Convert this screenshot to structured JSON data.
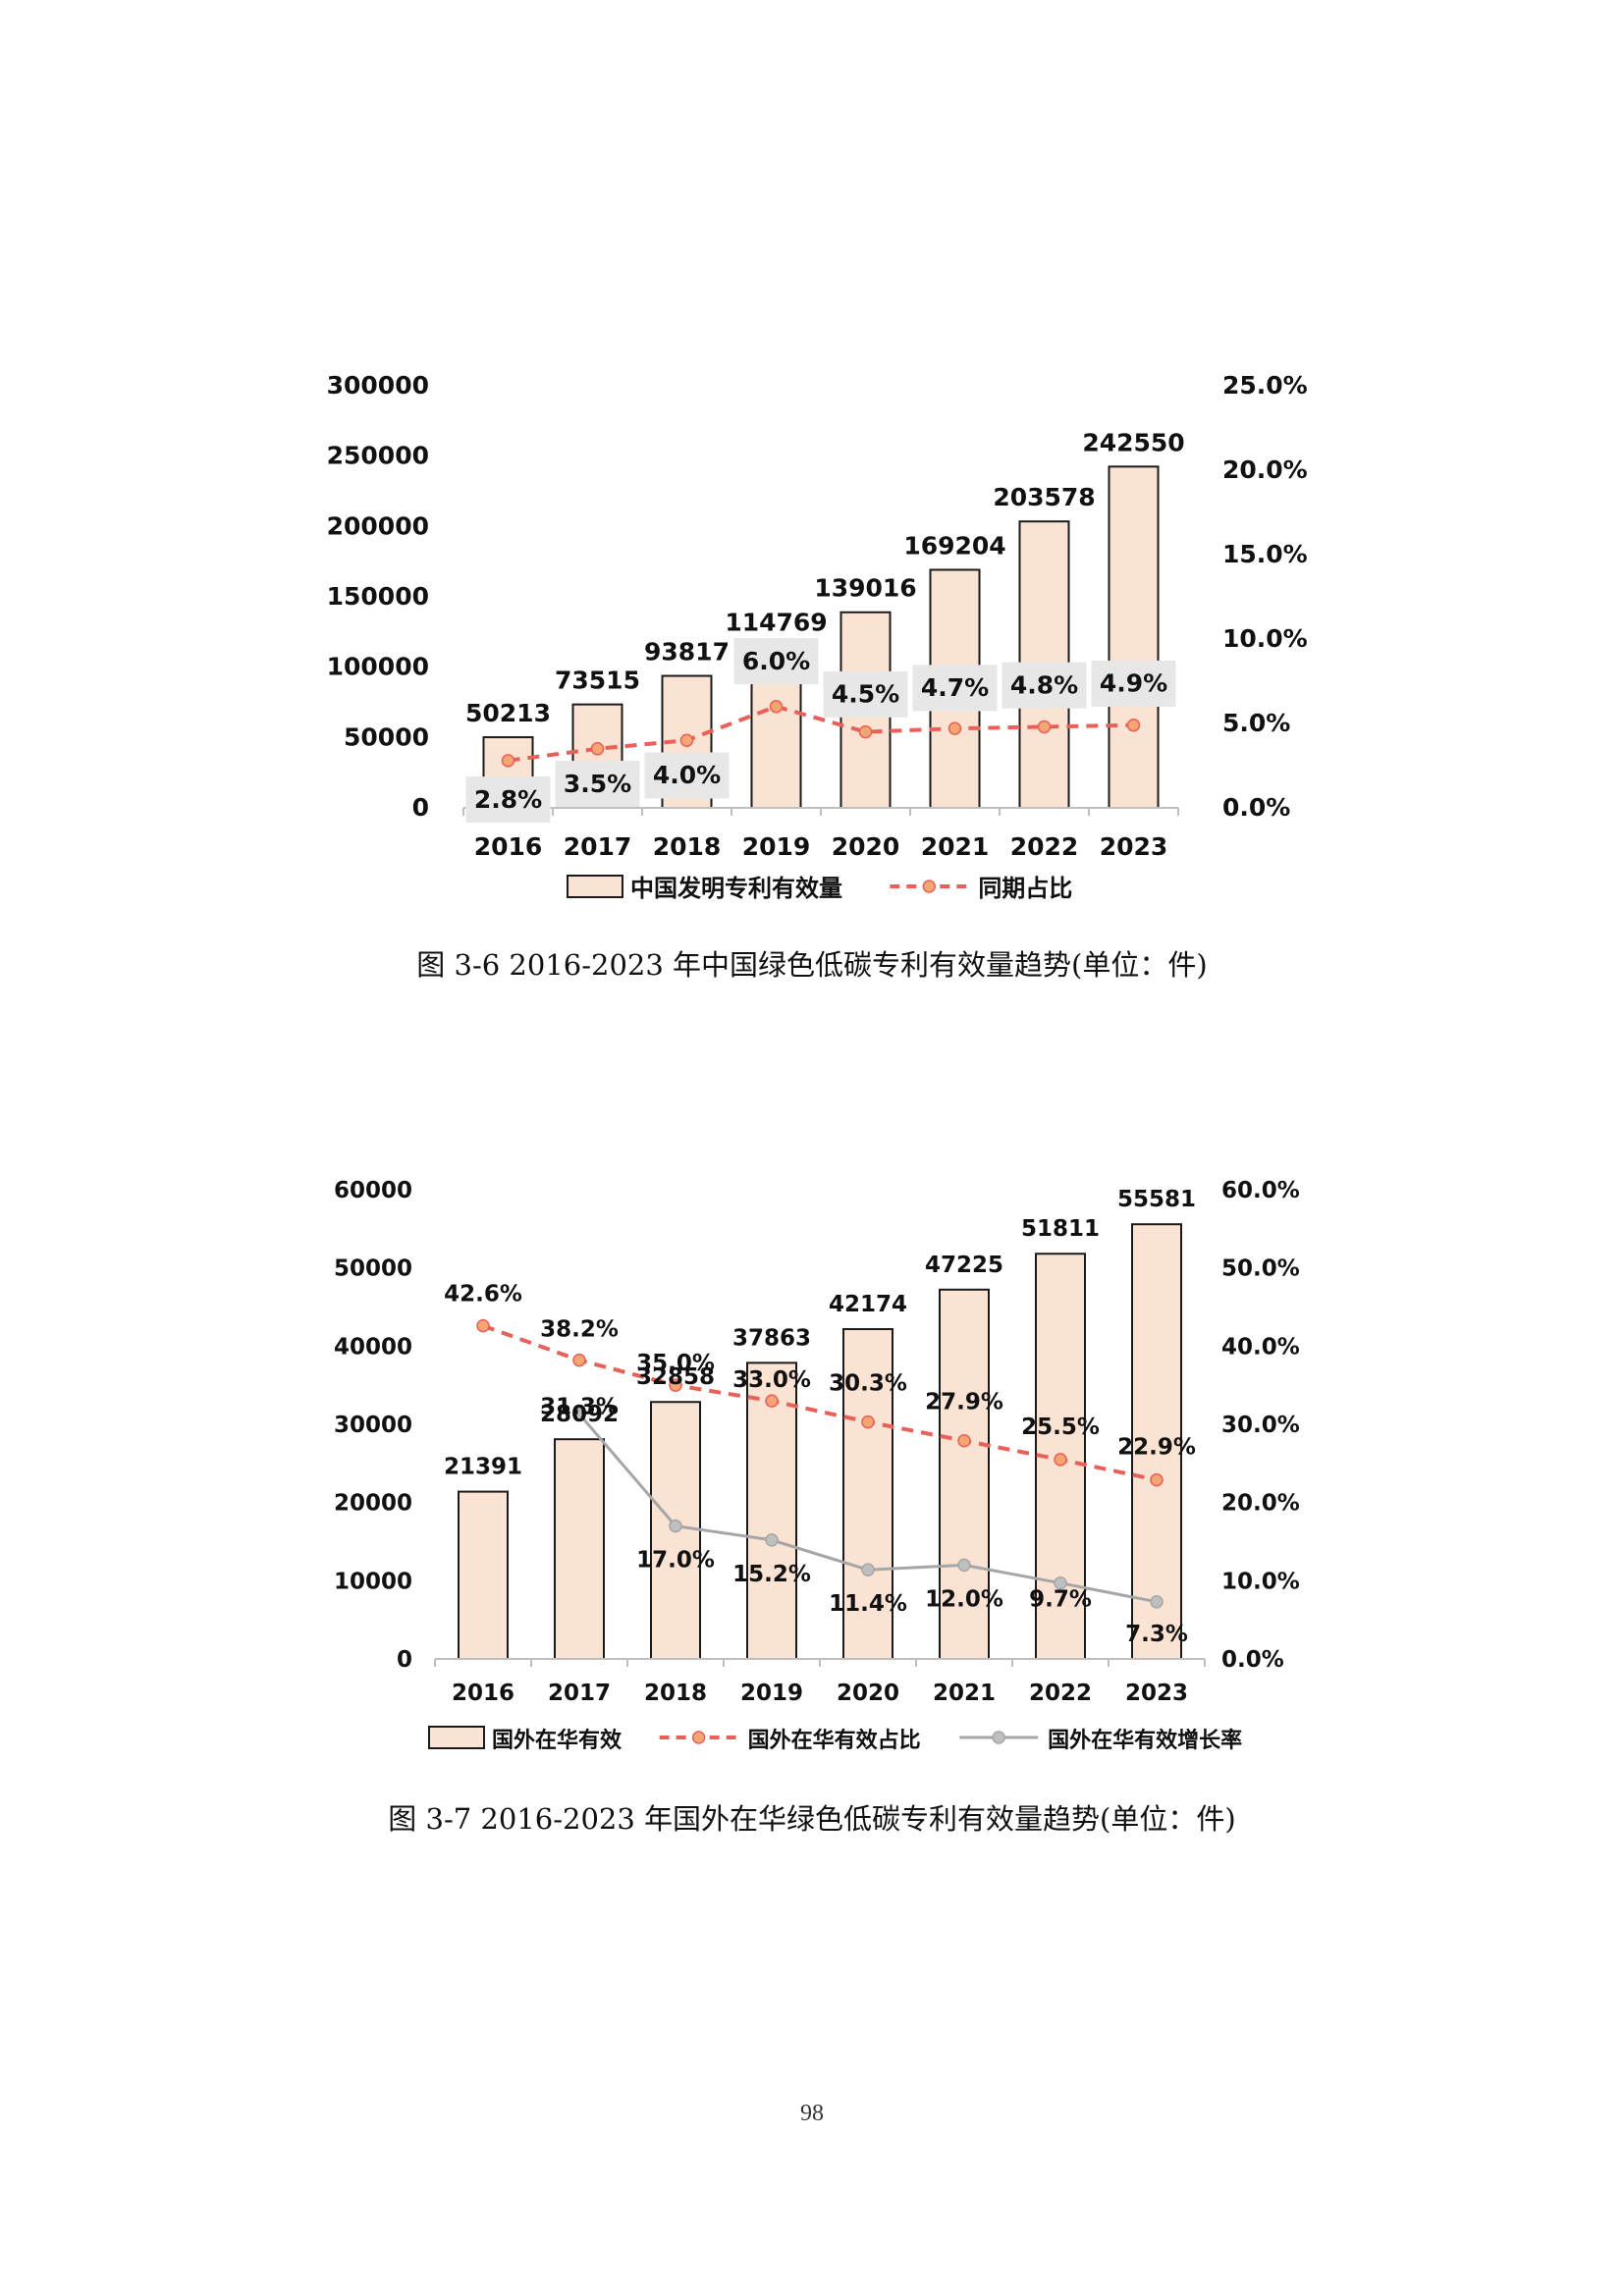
{
  "chart_data": [
    {
      "type": "bar",
      "title": "图 3-6 2016-2023 年中国绿色低碳专利有效量趋势(单位：件)",
      "categories": [
        "2016",
        "2017",
        "2018",
        "2019",
        "2020",
        "2021",
        "2022",
        "2023"
      ],
      "ylim": [
        0,
        300000
      ],
      "y_ticks": [
        "0",
        "50000",
        "100000",
        "150000",
        "200000",
        "250000",
        "300000"
      ],
      "y2lim": [
        0,
        25
      ],
      "y2_ticks": [
        "0.0%",
        "5.0%",
        "10.0%",
        "15.0%",
        "20.0%",
        "25.0%"
      ],
      "legend_position": "bottom",
      "series": [
        {
          "name": "中国发明专利有效量",
          "type": "bar",
          "axis": "left",
          "color": "#fbe3d4",
          "values": [
            50213,
            73515,
            93817,
            114769,
            139016,
            169204,
            203578,
            242550
          ],
          "labels": [
            "50213",
            "73515",
            "93817",
            "114769",
            "139016",
            "169204",
            "203578",
            "242550"
          ]
        },
        {
          "name": "同期占比",
          "type": "line",
          "axis": "right",
          "color": "#e8605a",
          "marker_color": "#f4a672",
          "dashed": true,
          "values": [
            2.8,
            3.5,
            4.0,
            6.0,
            4.5,
            4.7,
            4.8,
            4.9
          ],
          "labels": [
            "2.8%",
            "3.5%",
            "4.0%",
            "6.0%",
            "4.5%",
            "4.7%",
            "4.8%",
            "4.9%"
          ]
        }
      ]
    },
    {
      "type": "bar",
      "title": "图 3-7 2016-2023 年国外在华绿色低碳专利有效量趋势(单位：件)",
      "categories": [
        "2016",
        "2017",
        "2018",
        "2019",
        "2020",
        "2021",
        "2022",
        "2023"
      ],
      "ylim": [
        0,
        60000
      ],
      "y_ticks": [
        "0",
        "10000",
        "20000",
        "30000",
        "40000",
        "50000",
        "60000"
      ],
      "y2lim": [
        0,
        60
      ],
      "y2_ticks": [
        "0.0%",
        "10.0%",
        "20.0%",
        "30.0%",
        "40.0%",
        "50.0%",
        "60.0%"
      ],
      "legend_position": "bottom",
      "series": [
        {
          "name": "国外在华有效",
          "type": "bar",
          "axis": "left",
          "color": "#fbe3d4",
          "values": [
            21391,
            28092,
            32858,
            37863,
            42174,
            47225,
            51811,
            55581
          ],
          "labels": [
            "21391",
            "28092",
            "32858",
            "37863",
            "42174",
            "47225",
            "51811",
            "55581"
          ]
        },
        {
          "name": "国外在华有效占比",
          "type": "line",
          "axis": "right",
          "color": "#e8605a",
          "marker_color": "#f4a672",
          "dashed": true,
          "values": [
            42.6,
            38.2,
            35.0,
            33.0,
            30.3,
            27.9,
            25.5,
            22.9
          ],
          "labels": [
            "42.6%",
            "38.2%",
            "35.0%",
            "33.0%",
            "30.3%",
            "27.9%",
            "25.5%",
            "22.9%"
          ]
        },
        {
          "name": "国外在华有效增长率",
          "type": "line",
          "axis": "right",
          "color": "#a6a6a6",
          "marker_color": "#bfbfbf",
          "dashed": false,
          "values": [
            null,
            31.3,
            17.0,
            15.2,
            11.4,
            12.0,
            9.7,
            7.3
          ],
          "labels": [
            null,
            "31.3%",
            "17.0%",
            "15.2%",
            "11.4%",
            "12.0%",
            "9.7%",
            "7.3%"
          ]
        }
      ]
    }
  ],
  "captions": [
    "图 3-6 2016-2023 年中国绿色低碳专利有效量趋势(单位：件)",
    "图 3-7 2016-2023 年国外在华绿色低碳专利有效量趋势(单位：件)"
  ],
  "page_number": "98"
}
